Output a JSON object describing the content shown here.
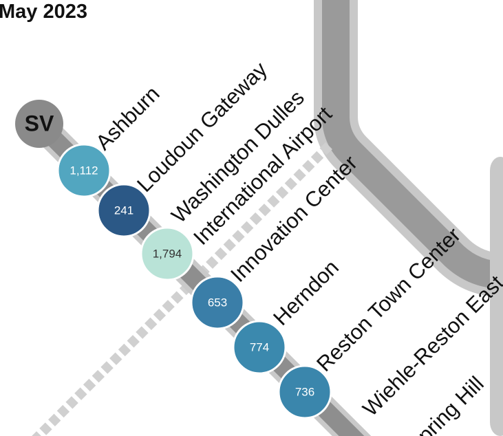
{
  "title": "May 2023",
  "line": "SV",
  "stations": [
    {
      "label_lines": [
        "Ashburn"
      ],
      "ridership": "1,112",
      "color": "#52a6c0",
      "text_color": "#ffffff"
    },
    {
      "label_lines": [
        "Loudoun Gateway"
      ],
      "ridership": "241",
      "color": "#2b5886",
      "text_color": "#ffffff"
    },
    {
      "label_lines": [
        "Washington Dulles",
        "International Airport"
      ],
      "ridership": "1,794",
      "color": "#b9e3d7",
      "text_color": "#333333"
    },
    {
      "label_lines": [
        "Innovation Center"
      ],
      "ridership": "653",
      "color": "#3a7ea8",
      "text_color": "#ffffff"
    },
    {
      "label_lines": [
        "Herndon"
      ],
      "ridership": "774",
      "color": "#3b89ae",
      "text_color": "#ffffff"
    },
    {
      "label_lines": [
        "Reston Town Center"
      ],
      "ridership": "736",
      "color": "#3a86ac",
      "text_color": "#ffffff"
    },
    {
      "label_lines": [
        "Wiehle-Reston East"
      ]
    },
    {
      "label_lines": [
        "Spring Hill"
      ]
    }
  ]
}
